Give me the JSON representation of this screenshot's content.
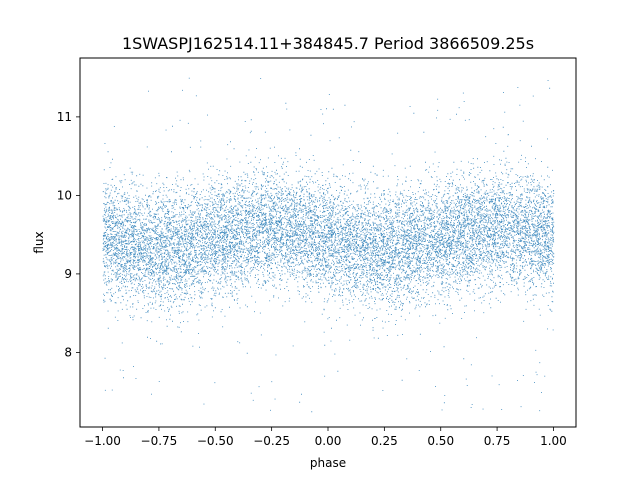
{
  "chart_data": {
    "type": "scatter",
    "title": "1SWASPJ162514.11+384845.7 Period 3866509.25s",
    "xlabel": "phase",
    "ylabel": "flux",
    "xlim": [
      -1.1,
      1.1
    ],
    "ylim": [
      7.05,
      11.75
    ],
    "xticks": [
      -1.0,
      -0.75,
      -0.5,
      -0.25,
      0.0,
      0.25,
      0.5,
      0.75,
      1.0
    ],
    "xtick_labels": [
      "−1.00",
      "−0.75",
      "−0.50",
      "−0.25",
      "0.00",
      "0.25",
      "0.50",
      "0.75",
      "1.00"
    ],
    "yticks": [
      8,
      9,
      10,
      11
    ],
    "ytick_labels": [
      "8",
      "9",
      "10",
      "11"
    ],
    "grid": false,
    "legend": "none",
    "point_color": "#1f77b4",
    "series": [
      {
        "phase_range": [
          -1.0,
          1.0
        ],
        "profile": {
          "phase": [
            -1.0,
            -0.75,
            -0.5,
            -0.25,
            0.0,
            0.25,
            0.5,
            0.75,
            1.0
          ],
          "median_flux": [
            9.45,
            9.3,
            9.45,
            9.6,
            9.45,
            9.3,
            9.45,
            9.6,
            9.45
          ],
          "p05_flux": [
            8.5,
            8.3,
            8.5,
            8.7,
            8.5,
            8.3,
            8.5,
            8.7,
            8.5
          ],
          "p95_flux": [
            10.15,
            10.05,
            10.2,
            10.35,
            10.15,
            10.05,
            10.2,
            10.35,
            10.15
          ],
          "outlier_range": [
            7.25,
            11.5
          ]
        }
      }
    ]
  }
}
